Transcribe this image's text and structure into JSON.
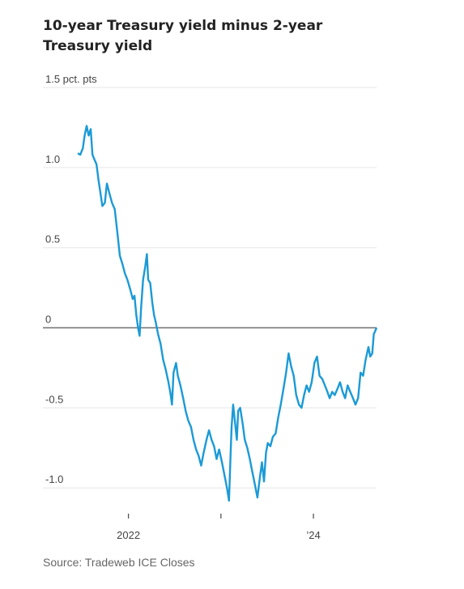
{
  "chart_data": {
    "type": "line",
    "title": "10-year Treasury yield minus 2-year Treasury yield",
    "ylabel_unit": "pct. pts",
    "ylim": [
      -1.1,
      1.5
    ],
    "y_ticks": [
      {
        "value": 1.5,
        "label": "1.5 pct. pts"
      },
      {
        "value": 1.0,
        "label": "1.0"
      },
      {
        "value": 0.5,
        "label": "0.5"
      },
      {
        "value": 0,
        "label": "0"
      },
      {
        "value": -0.5,
        "label": "-0.5"
      },
      {
        "value": -1.0,
        "label": "-1.0"
      }
    ],
    "xlim": [
      "2021-06-15",
      "2024-09-06"
    ],
    "x_ticks": [
      {
        "date": "2022-01-01",
        "label": "2022"
      },
      {
        "date": "2023-01-01",
        "label": ""
      },
      {
        "date": "2024-01-01",
        "label": "’24"
      }
    ],
    "grid": true,
    "line_color": "#1b9ad6",
    "series": [
      {
        "points": [
          [
            "2021-06-15",
            1.09
          ],
          [
            "2021-06-25",
            1.08
          ],
          [
            "2021-07-05",
            1.12
          ],
          [
            "2021-07-12",
            1.2
          ],
          [
            "2021-07-20",
            1.26
          ],
          [
            "2021-07-28",
            1.2
          ],
          [
            "2021-08-05",
            1.24
          ],
          [
            "2021-08-12",
            1.08
          ],
          [
            "2021-08-20",
            1.05
          ],
          [
            "2021-08-28",
            1.02
          ],
          [
            "2021-09-05",
            0.92
          ],
          [
            "2021-09-10",
            0.87
          ],
          [
            "2021-09-20",
            0.76
          ],
          [
            "2021-09-30",
            0.78
          ],
          [
            "2021-10-08",
            0.9
          ],
          [
            "2021-10-18",
            0.84
          ],
          [
            "2021-10-28",
            0.78
          ],
          [
            "2021-11-08",
            0.74
          ],
          [
            "2021-11-18",
            0.6
          ],
          [
            "2021-11-28",
            0.45
          ],
          [
            "2021-12-08",
            0.4
          ],
          [
            "2021-12-18",
            0.34
          ],
          [
            "2021-12-28",
            0.3
          ],
          [
            "2022-01-08",
            0.24
          ],
          [
            "2022-01-18",
            0.18
          ],
          [
            "2022-01-25",
            0.2
          ],
          [
            "2022-02-01",
            0.08
          ],
          [
            "2022-02-08",
            0.0
          ],
          [
            "2022-02-14",
            -0.05
          ],
          [
            "2022-02-20",
            0.12
          ],
          [
            "2022-02-28",
            0.3
          ],
          [
            "2022-03-08",
            0.38
          ],
          [
            "2022-03-15",
            0.46
          ],
          [
            "2022-03-20",
            0.3
          ],
          [
            "2022-03-28",
            0.28
          ],
          [
            "2022-04-05",
            0.16
          ],
          [
            "2022-04-12",
            0.08
          ],
          [
            "2022-04-18",
            0.04
          ],
          [
            "2022-04-28",
            -0.04
          ],
          [
            "2022-05-08",
            -0.1
          ],
          [
            "2022-05-18",
            -0.2
          ],
          [
            "2022-05-28",
            -0.26
          ],
          [
            "2022-06-08",
            -0.34
          ],
          [
            "2022-06-15",
            -0.4
          ],
          [
            "2022-06-22",
            -0.48
          ],
          [
            "2022-06-28",
            -0.28
          ],
          [
            "2022-07-08",
            -0.22
          ],
          [
            "2022-07-15",
            -0.3
          ],
          [
            "2022-07-25",
            -0.36
          ],
          [
            "2022-08-05",
            -0.44
          ],
          [
            "2022-08-15",
            -0.52
          ],
          [
            "2022-08-25",
            -0.58
          ],
          [
            "2022-09-05",
            -0.62
          ],
          [
            "2022-09-15",
            -0.7
          ],
          [
            "2022-09-25",
            -0.76
          ],
          [
            "2022-10-05",
            -0.8
          ],
          [
            "2022-10-15",
            -0.86
          ],
          [
            "2022-10-25",
            -0.78
          ],
          [
            "2022-11-05",
            -0.7
          ],
          [
            "2022-11-15",
            -0.64
          ],
          [
            "2022-11-25",
            -0.7
          ],
          [
            "2022-12-05",
            -0.74
          ],
          [
            "2022-12-15",
            -0.82
          ],
          [
            "2022-12-25",
            -0.76
          ],
          [
            "2023-01-05",
            -0.84
          ],
          [
            "2023-01-15",
            -0.92
          ],
          [
            "2023-01-25",
            -1.0
          ],
          [
            "2023-02-02",
            -1.08
          ],
          [
            "2023-02-08",
            -0.8
          ],
          [
            "2023-02-12",
            -0.62
          ],
          [
            "2023-02-18",
            -0.48
          ],
          [
            "2023-02-25",
            -0.58
          ],
          [
            "2023-03-05",
            -0.7
          ],
          [
            "2023-03-10",
            -0.52
          ],
          [
            "2023-03-18",
            -0.5
          ],
          [
            "2023-03-28",
            -0.6
          ],
          [
            "2023-04-05",
            -0.7
          ],
          [
            "2023-04-15",
            -0.75
          ],
          [
            "2023-04-25",
            -0.82
          ],
          [
            "2023-05-05",
            -0.9
          ],
          [
            "2023-05-15",
            -0.98
          ],
          [
            "2023-05-25",
            -1.06
          ],
          [
            "2023-06-05",
            -0.92
          ],
          [
            "2023-06-12",
            -0.84
          ],
          [
            "2023-06-20",
            -0.96
          ],
          [
            "2023-06-28",
            -0.78
          ],
          [
            "2023-07-05",
            -0.72
          ],
          [
            "2023-07-15",
            -0.74
          ],
          [
            "2023-07-25",
            -0.68
          ],
          [
            "2023-08-05",
            -0.66
          ],
          [
            "2023-08-15",
            -0.56
          ],
          [
            "2023-08-25",
            -0.48
          ],
          [
            "2023-09-05",
            -0.38
          ],
          [
            "2023-09-15",
            -0.28
          ],
          [
            "2023-09-25",
            -0.16
          ],
          [
            "2023-10-05",
            -0.24
          ],
          [
            "2023-10-15",
            -0.3
          ],
          [
            "2023-10-25",
            -0.42
          ],
          [
            "2023-11-05",
            -0.48
          ],
          [
            "2023-11-15",
            -0.5
          ],
          [
            "2023-11-25",
            -0.42
          ],
          [
            "2023-12-05",
            -0.36
          ],
          [
            "2023-12-15",
            -0.4
          ],
          [
            "2023-12-25",
            -0.34
          ],
          [
            "2024-01-05",
            -0.22
          ],
          [
            "2024-01-15",
            -0.18
          ],
          [
            "2024-01-25",
            -0.3
          ],
          [
            "2024-02-05",
            -0.32
          ],
          [
            "2024-02-15",
            -0.36
          ],
          [
            "2024-02-25",
            -0.4
          ],
          [
            "2024-03-05",
            -0.44
          ],
          [
            "2024-03-15",
            -0.4
          ],
          [
            "2024-03-25",
            -0.42
          ],
          [
            "2024-04-05",
            -0.38
          ],
          [
            "2024-04-15",
            -0.34
          ],
          [
            "2024-04-25",
            -0.4
          ],
          [
            "2024-05-05",
            -0.44
          ],
          [
            "2024-05-15",
            -0.36
          ],
          [
            "2024-05-25",
            -0.4
          ],
          [
            "2024-06-05",
            -0.44
          ],
          [
            "2024-06-15",
            -0.48
          ],
          [
            "2024-06-25",
            -0.44
          ],
          [
            "2024-07-05",
            -0.28
          ],
          [
            "2024-07-15",
            -0.3
          ],
          [
            "2024-07-25",
            -0.2
          ],
          [
            "2024-08-05",
            -0.12
          ],
          [
            "2024-08-12",
            -0.18
          ],
          [
            "2024-08-20",
            -0.16
          ],
          [
            "2024-08-26",
            -0.04
          ],
          [
            "2024-09-01",
            -0.02
          ],
          [
            "2024-09-06",
            0.0
          ]
        ]
      }
    ],
    "source": "Source: Tradeweb ICE Closes"
  }
}
